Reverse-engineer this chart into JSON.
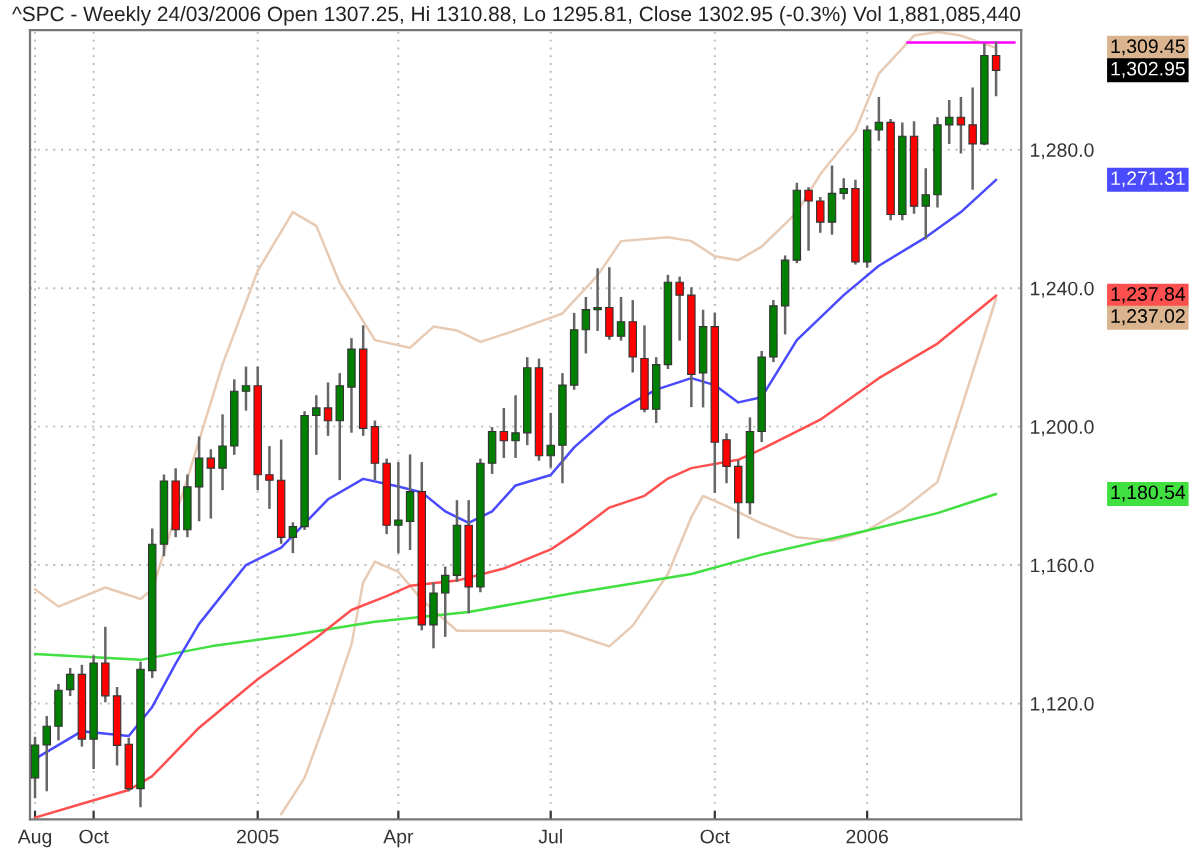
{
  "chart_data": {
    "type": "candlestick",
    "title": "^SPC - Weekly 24/03/2006 Open 1307.25, Hi 1310.88, Lo 1295.81, Close 1302.95 (-0.3%) Vol 1,881,085,440",
    "x": [
      "2004-08-27",
      "2004-09-03",
      "2004-09-10",
      "2004-09-17",
      "2004-09-24",
      "2004-10-01",
      "2004-10-08",
      "2004-10-15",
      "2004-10-22",
      "2004-10-29",
      "2004-11-05",
      "2004-11-12",
      "2004-11-19",
      "2004-11-26",
      "2004-12-03",
      "2004-12-10",
      "2004-12-17",
      "2004-12-24",
      "2004-12-31",
      "2005-01-07",
      "2005-01-14",
      "2005-01-21",
      "2005-01-28",
      "2005-02-04",
      "2005-02-11",
      "2005-02-18",
      "2005-02-25",
      "2005-03-04",
      "2005-03-11",
      "2005-03-18",
      "2005-03-25",
      "2005-04-01",
      "2005-04-08",
      "2005-04-15",
      "2005-04-22",
      "2005-04-29",
      "2005-05-06",
      "2005-05-13",
      "2005-05-20",
      "2005-05-27",
      "2005-06-03",
      "2005-06-10",
      "2005-06-17",
      "2005-06-24",
      "2005-07-01",
      "2005-07-08",
      "2005-07-15",
      "2005-07-22",
      "2005-07-29",
      "2005-08-05",
      "2005-08-12",
      "2005-08-19",
      "2005-08-26",
      "2005-09-02",
      "2005-09-09",
      "2005-09-16",
      "2005-09-23",
      "2005-09-30",
      "2005-10-07",
      "2005-10-14",
      "2005-10-21",
      "2005-10-28",
      "2005-11-04",
      "2005-11-11",
      "2005-11-18",
      "2005-11-25",
      "2005-12-02",
      "2005-12-09",
      "2005-12-16",
      "2005-12-23",
      "2005-12-30",
      "2006-01-06",
      "2006-01-13",
      "2006-01-20",
      "2006-01-27",
      "2006-02-03",
      "2006-02-10",
      "2006-02-17",
      "2006-02-24",
      "2006-03-03",
      "2006-03-10",
      "2006-03-17",
      "2006-03-24"
    ],
    "ohlc": [
      [
        1098.5,
        1110,
        1093,
        1108
      ],
      [
        1108,
        1116,
        1095,
        1113.4
      ],
      [
        1113.4,
        1125.3,
        1109.7,
        1123.8
      ],
      [
        1124,
        1129.9,
        1122.5,
        1128.4
      ],
      [
        1128.4,
        1130.8,
        1107.9,
        1109.7
      ],
      [
        1109.7,
        1133.5,
        1101.4,
        1131.7
      ],
      [
        1131.7,
        1141.8,
        1120.7,
        1122.2
      ],
      [
        1122.2,
        1124.4,
        1102.4,
        1107.9
      ],
      [
        1108.2,
        1109.7,
        1095,
        1095.4
      ],
      [
        1095.4,
        1131.7,
        1090.4,
        1129.9
      ],
      [
        1129.5,
        1170.2,
        1127.7,
        1166
      ],
      [
        1166,
        1185.8,
        1162.9,
        1184.3
      ],
      [
        1184.3,
        1187.6,
        1168.4,
        1170.2
      ],
      [
        1170.2,
        1185.8,
        1168.4,
        1182.6
      ],
      [
        1182.6,
        1196.8,
        1173,
        1190.9
      ],
      [
        1190.9,
        1193.1,
        1173.8,
        1188
      ],
      [
        1188,
        1203.2,
        1182,
        1194.4
      ],
      [
        1194.4,
        1213.3,
        1192.2,
        1210.2
      ],
      [
        1210.2,
        1217,
        1205,
        1211.8
      ],
      [
        1211.8,
        1217,
        1182,
        1186.1
      ],
      [
        1186.1,
        1194,
        1176.6,
        1184.5
      ],
      [
        1184.5,
        1195.9,
        1166.5,
        1168
      ],
      [
        1168,
        1172,
        1163.8,
        1171.1
      ],
      [
        1171.1,
        1204.1,
        1170.5,
        1203.2
      ],
      [
        1203.2,
        1208.7,
        1192.2,
        1205.4
      ],
      [
        1205.4,
        1212.4,
        1197.7,
        1201.7
      ],
      [
        1201.7,
        1215.1,
        1184.9,
        1211.8
      ],
      [
        1211.4,
        1225.2,
        1198.6,
        1222.4
      ],
      [
        1222.4,
        1228.9,
        1197.7,
        1199.5
      ],
      [
        1200,
        1201.4,
        1184.9,
        1189.4
      ],
      [
        1189.4,
        1190.4,
        1169.3,
        1171.5
      ],
      [
        1171.5,
        1189.4,
        1163.8,
        1173
      ],
      [
        1172.6,
        1191.6,
        1164.7,
        1181.2
      ],
      [
        1181.2,
        1189.4,
        1141.5,
        1142.7
      ],
      [
        1142.7,
        1154.6,
        1136.3,
        1151.9
      ],
      [
        1151.9,
        1159.2,
        1139.6,
        1157
      ],
      [
        1157,
        1178.4,
        1155.5,
        1171.5
      ],
      [
        1171.5,
        1178.4,
        1146.4,
        1153.7
      ],
      [
        1153.7,
        1190.4,
        1152.5,
        1189.4
      ],
      [
        1189.4,
        1199.5,
        1186.7,
        1198.6
      ],
      [
        1198.6,
        1205,
        1191.3,
        1195.9
      ],
      [
        1195.9,
        1208.7,
        1191.3,
        1198.2
      ],
      [
        1198.2,
        1219.7,
        1195,
        1217
      ],
      [
        1217,
        1219.3,
        1190.5,
        1191.6
      ],
      [
        1191.6,
        1203.6,
        1188.5,
        1194.6
      ],
      [
        1194.6,
        1215.1,
        1184,
        1212
      ],
      [
        1212,
        1232.5,
        1211,
        1228
      ],
      [
        1228,
        1237.1,
        1221.5,
        1233.8
      ],
      [
        1233.8,
        1245.4,
        1228,
        1234.4
      ],
      [
        1234.4,
        1245.7,
        1225.5,
        1226.1
      ],
      [
        1226.1,
        1237.1,
        1225.2,
        1230.3
      ],
      [
        1230.3,
        1236.2,
        1216,
        1220.1
      ],
      [
        1219.7,
        1228.9,
        1204.5,
        1205
      ],
      [
        1205,
        1219.7,
        1201.4,
        1217.9
      ],
      [
        1217.9,
        1243.5,
        1217,
        1241.7
      ],
      [
        1241.7,
        1243,
        1225.2,
        1238
      ],
      [
        1238,
        1239.9,
        1206,
        1215.1
      ],
      [
        1215.5,
        1233.4,
        1205.9,
        1228.9
      ],
      [
        1228.9,
        1232.5,
        1181.2,
        1195.5
      ],
      [
        1196.2,
        1197.7,
        1184,
        1188.5
      ],
      [
        1188.5,
        1190,
        1168,
        1178
      ],
      [
        1178,
        1202.3,
        1175,
        1198.6
      ],
      [
        1198.6,
        1221.5,
        1195.9,
        1220.1
      ],
      [
        1220.1,
        1236.2,
        1219,
        1234.9
      ],
      [
        1234.9,
        1249.1,
        1227,
        1248.1
      ],
      [
        1248.1,
        1270.1,
        1247.6,
        1268.3
      ],
      [
        1268.3,
        1268.8,
        1251.2,
        1265.2
      ],
      [
        1265.2,
        1266,
        1256.4,
        1259.1
      ],
      [
        1259.1,
        1275.1,
        1255.8,
        1267.4
      ],
      [
        1267.4,
        1271.4,
        1266,
        1268.8
      ],
      [
        1268.8,
        1271,
        1247.2,
        1247.6
      ],
      [
        1247.6,
        1286.6,
        1246.3,
        1285.7
      ],
      [
        1285.7,
        1294.9,
        1283,
        1287.9
      ],
      [
        1287.9,
        1288.5,
        1260,
        1261.3
      ],
      [
        1261.3,
        1287.5,
        1260,
        1283.9
      ],
      [
        1283.9,
        1287.9,
        1261.9,
        1263.7
      ],
      [
        1263.7,
        1274.3,
        1254.5,
        1267
      ],
      [
        1267,
        1289,
        1263.7,
        1287.2
      ],
      [
        1287.2,
        1294,
        1282,
        1289.4
      ],
      [
        1289.4,
        1294.9,
        1279.3,
        1287.2
      ],
      [
        1287.2,
        1297.6,
        1268.8,
        1281.7
      ],
      [
        1281.7,
        1310.4,
        1281.7,
        1307.25
      ],
      [
        1307.25,
        1310.88,
        1295.81,
        1302.95
      ]
    ],
    "colors": [
      "#008000",
      "#008000",
      "#008000",
      "#008000",
      "#ff0000",
      "#008000",
      "#ff0000",
      "#ff0000",
      "#ff0000",
      "#008000",
      "#008000",
      "#008000",
      "#ff0000",
      "#008000",
      "#008000",
      "#ff0000",
      "#008000",
      "#008000",
      "#008000",
      "#ff0000",
      "#ff0000",
      "#ff0000",
      "#008000",
      "#008000",
      "#008000",
      "#ff0000",
      "#008000",
      "#008000",
      "#ff0000",
      "#ff0000",
      "#ff0000",
      "#008000",
      "#008000",
      "#ff0000",
      "#008000",
      "#008000",
      "#008000",
      "#ff0000",
      "#008000",
      "#008000",
      "#ff0000",
      "#008000",
      "#008000",
      "#ff0000",
      "#008000",
      "#008000",
      "#008000",
      "#008000",
      "#008000",
      "#ff0000",
      "#008000",
      "#ff0000",
      "#ff0000",
      "#008000",
      "#008000",
      "#ff0000",
      "#ff0000",
      "#008000",
      "#ff0000",
      "#ff0000",
      "#ff0000",
      "#008000",
      "#008000",
      "#008000",
      "#008000",
      "#008000",
      "#ff0000",
      "#ff0000",
      "#008000",
      "#008000",
      "#ff0000",
      "#008000",
      "#008000",
      "#ff0000",
      "#008000",
      "#ff0000",
      "#008000",
      "#008000",
      "#008000",
      "#ff0000",
      "#ff0000",
      "#008000",
      "#ff0000"
    ],
    "series": [
      {
        "type": "line",
        "color": "#e8cbb5",
        "x": [
          "2004-08-27",
          "2004-09-10",
          "2004-10-08",
          "2004-10-29",
          "2004-11-05",
          "2004-11-26",
          "2004-12-17",
          "2005-01-07",
          "2005-01-28",
          "2005-02-11",
          "2005-02-25",
          "2005-03-18",
          "2005-04-08",
          "2005-04-22",
          "2005-05-06",
          "2005-05-20",
          "2005-06-10",
          "2005-07-08",
          "2005-07-29",
          "2005-08-12",
          "2005-09-09",
          "2005-09-23",
          "2005-10-07",
          "2005-10-21",
          "2005-11-04",
          "2005-11-25",
          "2005-12-09",
          "2005-12-30",
          "2006-01-13",
          "2006-02-03",
          "2006-02-17",
          "2006-03-03",
          "2006-03-24"
        ],
        "values": [
          1153,
          1148,
          1153.5,
          1150.2,
          1153,
          1185,
          1218,
          1245,
          1262,
          1258,
          1241.5,
          1225,
          1222.8,
          1228.9,
          1227.8,
          1224.5,
          1227.8,
          1232.7,
          1243.7,
          1253.6,
          1254.7,
          1253.6,
          1249.2,
          1248.1,
          1252,
          1261.9,
          1272.9,
          1285.5,
          1302,
          1313,
          1314,
          1313,
          1309.45
        ]
      },
      {
        "type": "line",
        "color": "#e8cbb5",
        "x": [
          "2005-01-21",
          "2005-02-04",
          "2005-02-18",
          "2005-03-04",
          "2005-03-11",
          "2005-03-18",
          "2005-04-01",
          "2005-04-15",
          "2005-05-06",
          "2005-06-10",
          "2005-07-08",
          "2005-08-05",
          "2005-08-19",
          "2005-09-09",
          "2005-09-23",
          "2005-09-30",
          "2005-10-14",
          "2005-11-04",
          "2005-11-25",
          "2005-12-16",
          "2006-01-06",
          "2006-01-27",
          "2006-02-17",
          "2006-03-03",
          "2006-03-24"
        ],
        "values": [
          1088,
          1098.5,
          1117,
          1137,
          1155,
          1161,
          1158,
          1150,
          1141,
          1141,
          1141,
          1136.5,
          1142.5,
          1157.4,
          1173.9,
          1180,
          1177,
          1172,
          1168,
          1167,
          1170,
          1176,
          1184,
          1205,
          1237.02
        ]
      },
      {
        "type": "line",
        "color": "#40e040",
        "x": [
          "2004-08-27",
          "2004-10-29",
          "2004-12-10",
          "2005-01-28",
          "2005-03-04",
          "2005-03-18",
          "2005-05-13",
          "2005-07-15",
          "2005-09-23",
          "2005-11-04",
          "2006-01-06",
          "2006-02-17",
          "2006-03-24"
        ],
        "values": [
          1134.3,
          1132.6,
          1136.5,
          1139.8,
          1142.5,
          1143.6,
          1146.4,
          1151.9,
          1157.4,
          1163,
          1170,
          1175,
          1180.54
        ]
      },
      {
        "type": "line",
        "color": "#ff5050",
        "x": [
          "2004-08-27",
          "2004-09-24",
          "2004-10-22",
          "2004-11-05",
          "2004-12-03",
          "2005-01-07",
          "2005-02-11",
          "2005-03-04",
          "2005-03-25",
          "2005-04-08",
          "2005-05-06",
          "2005-06-03",
          "2005-07-01",
          "2005-07-15",
          "2005-08-05",
          "2005-08-26",
          "2005-09-09",
          "2005-09-23",
          "2005-10-21",
          "2005-11-04",
          "2005-12-09",
          "2006-01-13",
          "2006-02-17",
          "2006-03-24"
        ],
        "values": [
          1087,
          1091,
          1095,
          1099,
          1113,
          1127,
          1139,
          1147,
          1151,
          1154,
          1155.5,
          1159,
          1164.5,
          1169,
          1176.6,
          1180,
          1185,
          1188,
          1190.4,
          1193.5,
          1202,
          1214,
          1224,
          1237.84
        ]
      },
      {
        "type": "line",
        "color": "#4a4aff",
        "x": [
          "2004-08-27",
          "2004-09-24",
          "2004-10-22",
          "2004-11-05",
          "2004-11-19",
          "2004-12-03",
          "2004-12-31",
          "2005-01-21",
          "2005-02-04",
          "2005-02-18",
          "2005-03-11",
          "2005-04-01",
          "2005-04-15",
          "2005-04-29",
          "2005-05-13",
          "2005-05-27",
          "2005-06-10",
          "2005-07-01",
          "2005-07-15",
          "2005-08-05",
          "2005-08-19",
          "2005-09-02",
          "2005-09-23",
          "2005-10-07",
          "2005-10-21",
          "2005-11-04",
          "2005-11-25",
          "2005-12-23",
          "2006-01-13",
          "2006-02-10",
          "2006-03-03",
          "2006-03-24"
        ],
        "values": [
          1104,
          1112,
          1110.6,
          1119,
          1131.5,
          1143,
          1160,
          1165,
          1172,
          1179,
          1184.9,
          1182.7,
          1181,
          1175.5,
          1172.2,
          1175.5,
          1183,
          1186,
          1194,
          1203,
          1207,
          1210.7,
          1214,
          1212,
          1207,
          1208.5,
          1225,
          1238,
          1246.5,
          1254.7,
          1262,
          1271.31
        ]
      },
      {
        "type": "line",
        "color": "#ff00ff",
        "x": [
          "2006-01-30",
          "2006-04-04"
        ],
        "values": [
          1311,
          1311
        ]
      }
    ],
    "xlim": [
      "2004-08-24",
      "2006-04-08"
    ],
    "ylim": [
      1086.5,
      1314.6
    ],
    "xticks": [
      {
        "value": "2004-08-27",
        "label": "Aug"
      },
      {
        "value": "2004-10-01",
        "label": "Oct"
      },
      {
        "value": "2005-01-07",
        "label": "2005"
      },
      {
        "value": "2005-04-01",
        "label": "Apr"
      },
      {
        "value": "2005-07-01",
        "label": "Jul"
      },
      {
        "value": "2005-10-07",
        "label": "Oct"
      },
      {
        "value": "2006-01-06",
        "label": "2006"
      }
    ],
    "yticks": [
      {
        "value": 1120,
        "label": "1,120.0"
      },
      {
        "value": 1160,
        "label": "1,160.0"
      },
      {
        "value": 1200,
        "label": "1,200.0"
      },
      {
        "value": 1240,
        "label": "1,240.0"
      },
      {
        "value": 1280,
        "label": "1,280.0"
      }
    ],
    "grid": true,
    "annotations": [
      "1,309.45",
      "1,302.95",
      "1,271.31",
      "1,237.84",
      "1,237.02",
      "1,180.54"
    ]
  }
}
